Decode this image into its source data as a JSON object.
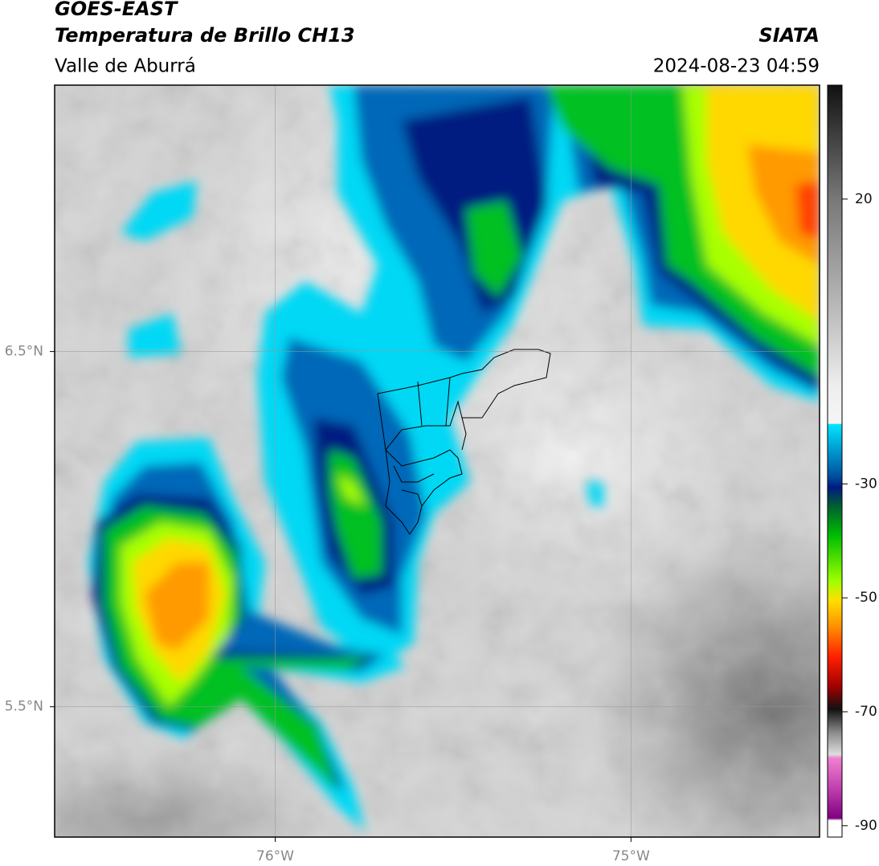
{
  "chart_data": {
    "type": "map",
    "title": "GOES-EAST",
    "subtitle": "Temperatura de Brillo CH13",
    "source": "SIATA",
    "region": "Valle de Aburrá",
    "timestamp": "2024-08-23 04:59",
    "xlim": [
      -76.62,
      -74.47
    ],
    "ylim": [
      5.133,
      7.25
    ],
    "xticks": [
      {
        "value": -76,
        "label": "76°W"
      },
      {
        "value": -75,
        "label": "75°W"
      }
    ],
    "yticks": [
      {
        "value": 6.5,
        "label": "6.5°N"
      },
      {
        "value": 5.5,
        "label": "5.5°N"
      }
    ],
    "grid": true,
    "colorbar": {
      "lim": [
        -92,
        40
      ],
      "ticks": [
        20,
        -30,
        -50,
        -70,
        -90
      ]
    }
  }
}
